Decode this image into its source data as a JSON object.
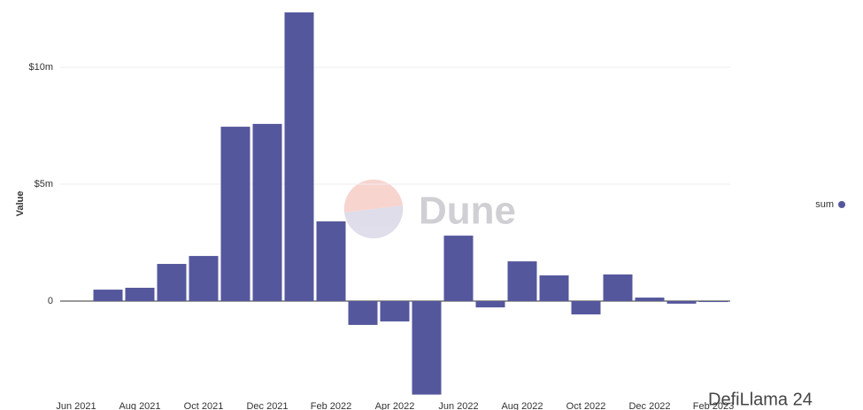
{
  "chart_data": {
    "type": "bar",
    "y_label": "Value",
    "categories": [
      "Jun 2021",
      null,
      "Aug 2021",
      null,
      "Oct 2021",
      null,
      "Dec 2021",
      null,
      "Feb 2022",
      null,
      "Apr 2022",
      null,
      "Jun 2022",
      null,
      "Aug 2022",
      null,
      "Oct 2022",
      null,
      "Dec 2022",
      null,
      "Feb 2023"
    ],
    "series": [
      {
        "name": "sum",
        "color": "#55579c",
        "values": [
          null,
          0.49,
          0.57,
          1.59,
          1.93,
          7.46,
          7.58,
          12.35,
          3.41,
          -1.02,
          -0.87,
          -4.0,
          2.8,
          -0.27,
          1.7,
          1.1,
          -0.57,
          1.14,
          0.15,
          -0.11,
          -0.04
        ]
      }
    ],
    "ylim": [
      -4,
      12.35
    ],
    "yticks": [
      0,
      {
        "value": 5,
        "label": "$5m"
      },
      {
        "value": 10,
        "label": "$10m"
      }
    ],
    "grid": true,
    "legend": "right",
    "watermark": "Dune",
    "credit": "DefiLlama 24"
  }
}
